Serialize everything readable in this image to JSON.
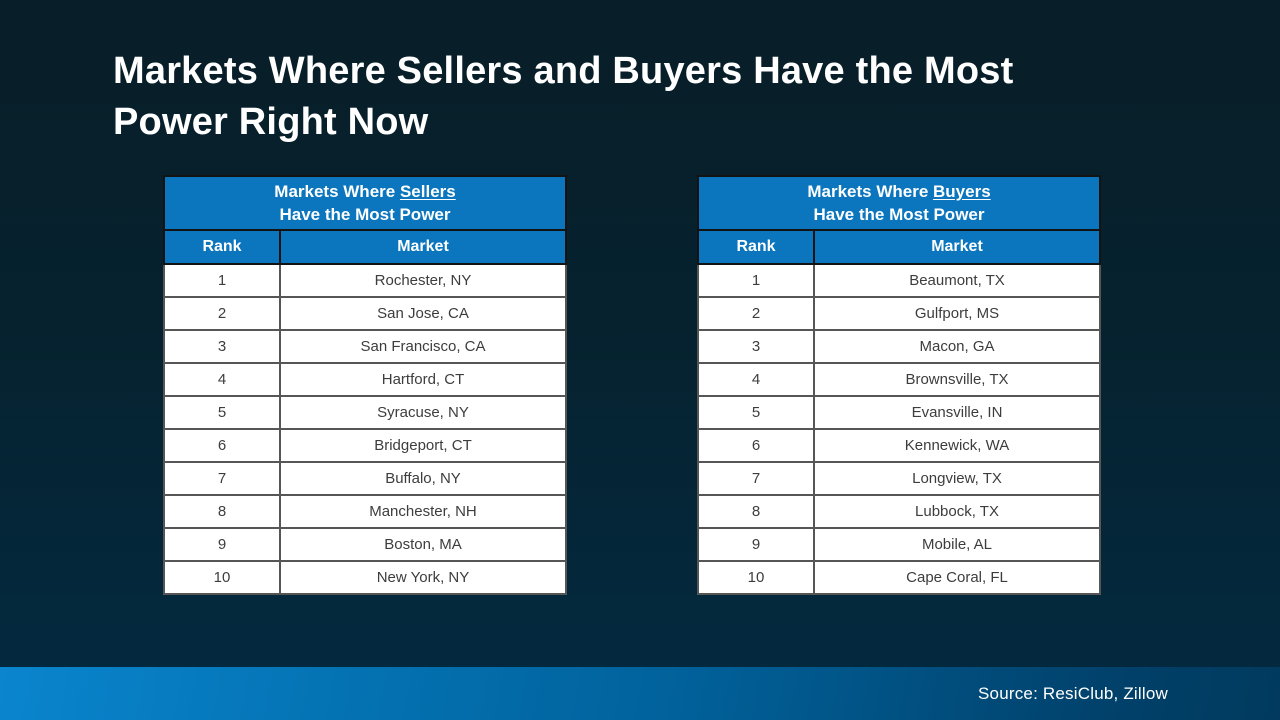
{
  "title": "Markets Where Sellers and Buyers Have the Most\nPower Right Now",
  "chart_data": [
    {
      "type": "table",
      "title_prefix": "Markets Where ",
      "title_emphasis": "Sellers",
      "title_line2": "Have the Most Power",
      "columns": [
        "Rank",
        "Market"
      ],
      "rows": [
        [
          1,
          "Rochester, NY"
        ],
        [
          2,
          "San Jose, CA"
        ],
        [
          3,
          "San Francisco, CA"
        ],
        [
          4,
          "Hartford, CT"
        ],
        [
          5,
          "Syracuse, NY"
        ],
        [
          6,
          "Bridgeport, CT"
        ],
        [
          7,
          "Buffalo, NY"
        ],
        [
          8,
          "Manchester, NH"
        ],
        [
          9,
          "Boston, MA"
        ],
        [
          10,
          "New York, NY"
        ]
      ]
    },
    {
      "type": "table",
      "title_prefix": "Markets Where ",
      "title_emphasis": "Buyers",
      "title_line2": "Have the Most Power",
      "columns": [
        "Rank",
        "Market"
      ],
      "rows": [
        [
          1,
          "Beaumont, TX"
        ],
        [
          2,
          "Gulfport, MS"
        ],
        [
          3,
          "Macon, GA"
        ],
        [
          4,
          "Brownsville, TX"
        ],
        [
          5,
          "Evansville, IN"
        ],
        [
          6,
          "Kennewick, WA"
        ],
        [
          7,
          "Longview, TX"
        ],
        [
          8,
          "Lubbock, TX"
        ],
        [
          9,
          "Mobile, AL"
        ],
        [
          10,
          "Cape Coral, FL"
        ]
      ]
    }
  ],
  "footer": {
    "source": "Source: ResiClub, Zillow"
  },
  "colors": {
    "background_top": "#081e28",
    "background_bottom": "#032a41",
    "table_header_blue": "#0b76be",
    "footer_gradient_start": "#0a85ce",
    "footer_gradient_end": "#013a5e",
    "title_text": "#ffffff",
    "cell_text": "#3d3d3d"
  }
}
